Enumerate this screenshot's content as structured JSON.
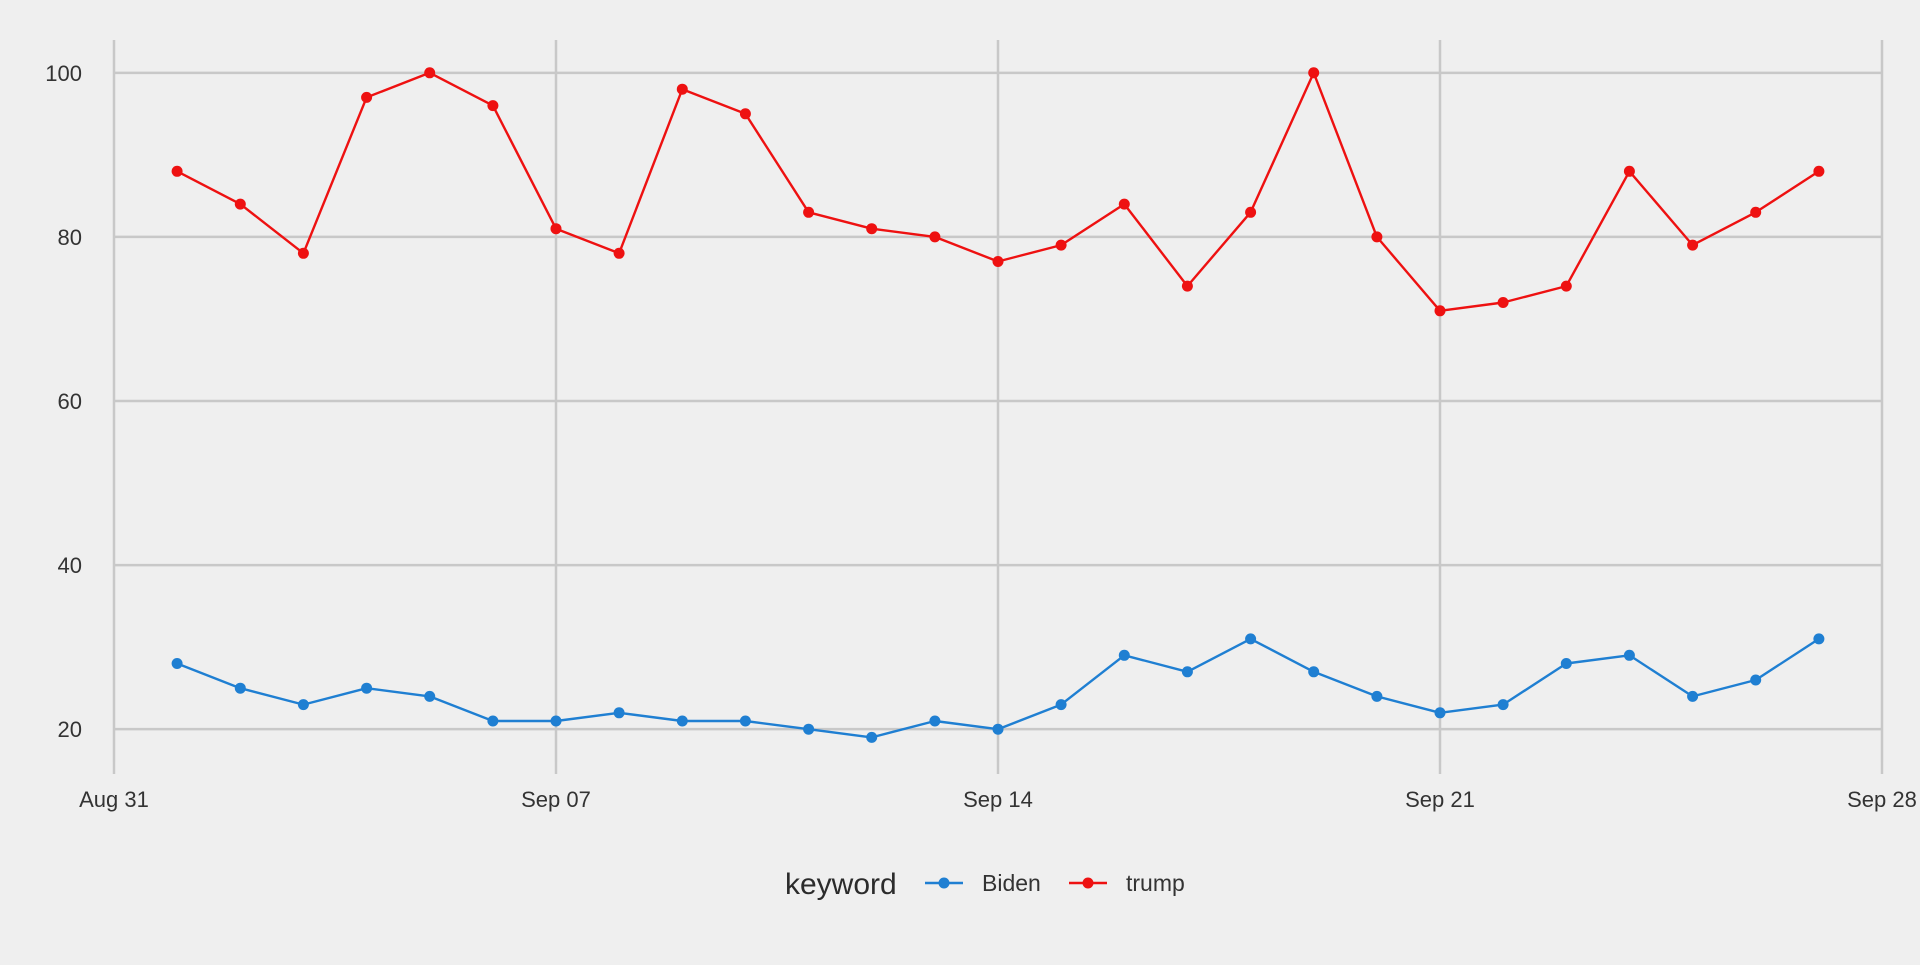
{
  "chart_data": {
    "type": "line",
    "title": "",
    "xlabel": "",
    "ylabel": "",
    "x_ticks": [
      "Aug 31",
      "Sep 07",
      "Sep 14",
      "Sep 21",
      "Sep 28"
    ],
    "x_tick_dates": [
      "2020-08-31",
      "2020-09-07",
      "2020-09-14",
      "2020-09-21",
      "2020-09-28"
    ],
    "xlim": [
      "2020-08-31",
      "2020-09-28"
    ],
    "y_ticks": [
      20,
      40,
      60,
      80,
      100
    ],
    "y_tick_labels": [
      "20",
      "40",
      "60",
      "80",
      "100"
    ],
    "ylim": [
      16,
      104
    ],
    "grid": true,
    "legend": {
      "title": "keyword",
      "position": "bottom"
    },
    "x": [
      "2020-09-01",
      "2020-09-02",
      "2020-09-03",
      "2020-09-04",
      "2020-09-05",
      "2020-09-06",
      "2020-09-07",
      "2020-09-08",
      "2020-09-09",
      "2020-09-10",
      "2020-09-11",
      "2020-09-12",
      "2020-09-13",
      "2020-09-14",
      "2020-09-15",
      "2020-09-16",
      "2020-09-17",
      "2020-09-18",
      "2020-09-19",
      "2020-09-20",
      "2020-09-21",
      "2020-09-22",
      "2020-09-23",
      "2020-09-24",
      "2020-09-25",
      "2020-09-26",
      "2020-09-27"
    ],
    "series": [
      {
        "name": "Biden",
        "color": "#1f7fd2",
        "values": [
          28,
          25,
          23,
          25,
          24,
          21,
          21,
          22,
          21,
          21,
          20,
          19,
          21,
          20,
          23,
          29,
          27,
          31,
          27,
          24,
          22,
          23,
          28,
          29,
          24,
          26,
          31
        ]
      },
      {
        "name": "trump",
        "color": "#ee1111",
        "values": [
          88,
          84,
          78,
          97,
          100,
          96,
          81,
          78,
          98,
          95,
          83,
          81,
          80,
          77,
          79,
          84,
          74,
          83,
          100,
          80,
          71,
          72,
          74,
          88,
          79,
          83,
          88
        ]
      }
    ]
  }
}
